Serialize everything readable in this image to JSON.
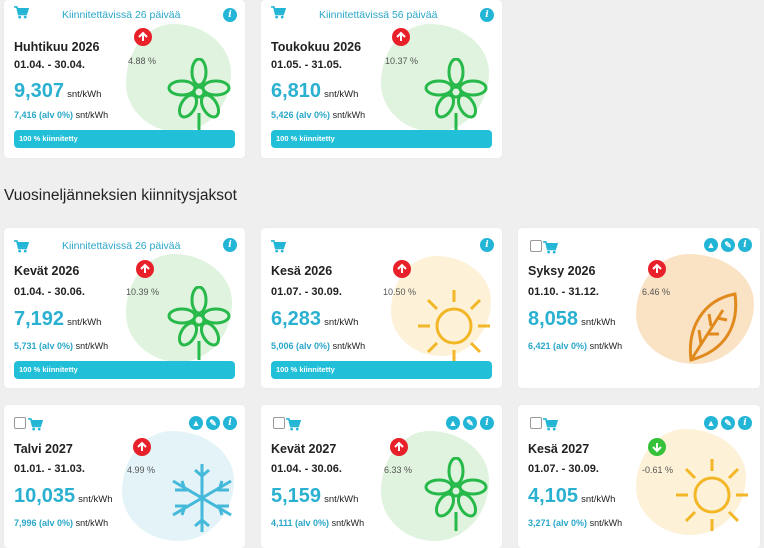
{
  "section_title": "Vuosineljänneksien kiinnitysjaksot",
  "unit": "snt/kWh",
  "cards": [
    {
      "avail": "Kiinnitettävissä 26 päivää",
      "title": "Huhtikuu 2026",
      "dates": "01.04. - 30.04.",
      "price": "9,307",
      "alv": "7,416 (alv 0%)",
      "change": "4.88 %",
      "dir": "up",
      "bar": "100 % kiinnitetty",
      "art": "flower-icon"
    },
    {
      "avail": "Kiinnitettävissä 56 päivää",
      "title": "Toukokuu 2026",
      "dates": "01.05. - 31.05.",
      "price": "6,810",
      "alv": "5,426 (alv 0%)",
      "change": "10.37 %",
      "dir": "up",
      "bar": "100 % kiinnitetty",
      "art": "flower-icon"
    },
    {
      "avail": "Kiinnitettävissä 26 päivää",
      "title": "Kevät 2026",
      "dates": "01.04. - 30.06.",
      "price": "7,192",
      "alv": "5,731 (alv 0%)",
      "change": "10.39 %",
      "dir": "up",
      "bar": "100 % kiinnitetty",
      "art": "flower-icon"
    },
    {
      "avail": "",
      "title": "Kesä 2026",
      "dates": "01.07. - 30.09.",
      "price": "6,283",
      "alv": "5,006 (alv 0%)",
      "change": "10.50 %",
      "dir": "up",
      "bar": "100 % kiinnitetty",
      "art": "sun-icon"
    },
    {
      "avail": "",
      "title": "Syksy 2026",
      "dates": "01.10. - 31.12.",
      "price": "8,058",
      "alv": "6,421 (alv 0%)",
      "change": "6.46 %",
      "dir": "up",
      "bar": "",
      "art": "leaf-icon"
    },
    {
      "avail": "",
      "title": "Talvi 2027",
      "dates": "01.01. - 31.03.",
      "price": "10,035",
      "alv": "7,996 (alv 0%)",
      "change": "4.99 %",
      "dir": "up",
      "bar": "",
      "art": "snowflake-icon"
    },
    {
      "avail": "",
      "title": "Kevät 2027",
      "dates": "01.04. - 30.06.",
      "price": "5,159",
      "alv": "4,111 (alv 0%)",
      "change": "6.33 %",
      "dir": "up",
      "bar": "",
      "art": "flower-icon"
    },
    {
      "avail": "",
      "title": "Kesä 2027",
      "dates": "01.07. - 30.09.",
      "price": "4,105",
      "alv": "3,271 (alv 0%)",
      "change": "-0.61 %",
      "dir": "down",
      "bar": "",
      "art": "sun-icon"
    }
  ],
  "colors": {
    "accent": "#22bfd9",
    "up": "#e8202a",
    "down": "#35c23a"
  }
}
